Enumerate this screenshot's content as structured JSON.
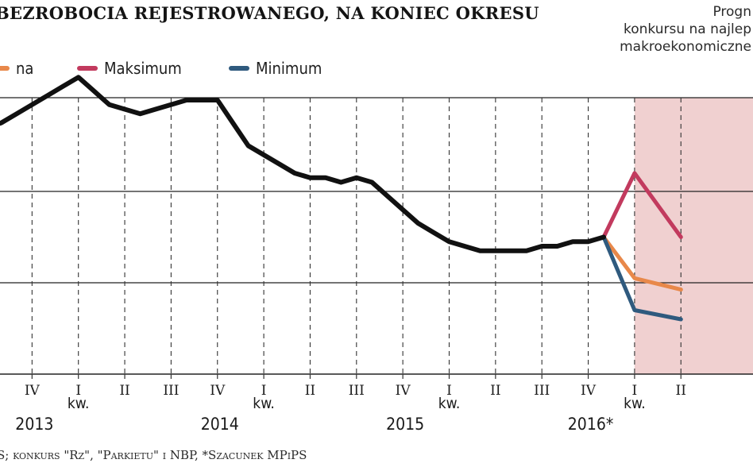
{
  "header": {
    "title": "BEZROBOCIA REJESTROWANEGO, NA KONIEC OKRESU",
    "note_lines": [
      "Progn",
      "konkursu na najlep",
      "makroekonomiczne"
    ]
  },
  "legend": [
    {
      "label": "na",
      "color": "#e8884a"
    },
    {
      "label": "Maksimum",
      "color": "#c23a5e"
    },
    {
      "label": "Minimum",
      "color": "#2f5a7e"
    }
  ],
  "colors": {
    "actual_line": "#111111",
    "median": "#e8884a",
    "max": "#c23a5e",
    "min": "#2f5a7e",
    "forecast_bg": "#f0d0d0",
    "grid": "#222222"
  },
  "chart_data": {
    "type": "line",
    "title": "BEZROBOCIA REJESTROWANEGO, NA KONIEC OKRESU",
    "xlabel": "",
    "ylabel": "",
    "x_ticks": [
      "IV",
      "kw. I",
      "II",
      "III",
      "IV",
      "kw. I",
      "II",
      "III",
      "IV",
      "kw. I",
      "II",
      "III",
      "IV",
      "kw. I",
      "II"
    ],
    "year_labels": [
      {
        "label": "2013",
        "at": "kw. I 2013"
      },
      {
        "label": "2014",
        "at": "kw. I 2014"
      },
      {
        "label": "2015",
        "at": "kw. I 2015"
      },
      {
        "label": "2016*",
        "at": "kw. I 2016"
      }
    ],
    "month_index_start": "2012-12",
    "series": [
      {
        "key": "actual",
        "x": [
          0,
          1,
          2,
          3,
          4,
          5,
          6,
          7,
          8,
          9,
          10,
          11,
          12,
          13,
          14,
          15,
          16,
          17,
          18,
          19,
          20,
          21,
          22,
          23,
          24,
          25,
          26,
          27,
          28,
          29,
          30,
          31,
          32,
          33,
          34,
          35,
          36,
          37,
          38,
          39,
          40
        ],
        "y": [
          13.4,
          13.5,
          13.7,
          13.9,
          14.1,
          14.3,
          14.5,
          14.2,
          13.9,
          13.8,
          13.7,
          13.8,
          13.9,
          14.0,
          14.0,
          14.0,
          13.5,
          13.0,
          12.8,
          12.6,
          12.4,
          12.3,
          12.3,
          12.2,
          12.3,
          12.2,
          11.9,
          11.6,
          11.3,
          11.1,
          10.9,
          10.8,
          10.7,
          10.7,
          10.7,
          10.7,
          10.8,
          10.8,
          10.9,
          10.9,
          11.0
        ]
      },
      {
        "key": "median",
        "x": [
          40,
          42,
          45
        ],
        "y": [
          11.0,
          10.1,
          9.85
        ]
      },
      {
        "key": "max",
        "x": [
          40,
          42,
          45
        ],
        "y": [
          11.0,
          12.4,
          11.0
        ]
      },
      {
        "key": "min",
        "x": [
          40,
          42,
          45
        ],
        "y": [
          11.0,
          9.4,
          9.2
        ]
      }
    ],
    "forecast_region_start_x": 42,
    "gridlines_y": [
      12.0,
      10.0
    ],
    "grid": true,
    "legend_position": "top-left"
  },
  "source": "S; konkurs \"Rz\", \"Parkietu\" i NBP, *Szacunek MPiPS"
}
